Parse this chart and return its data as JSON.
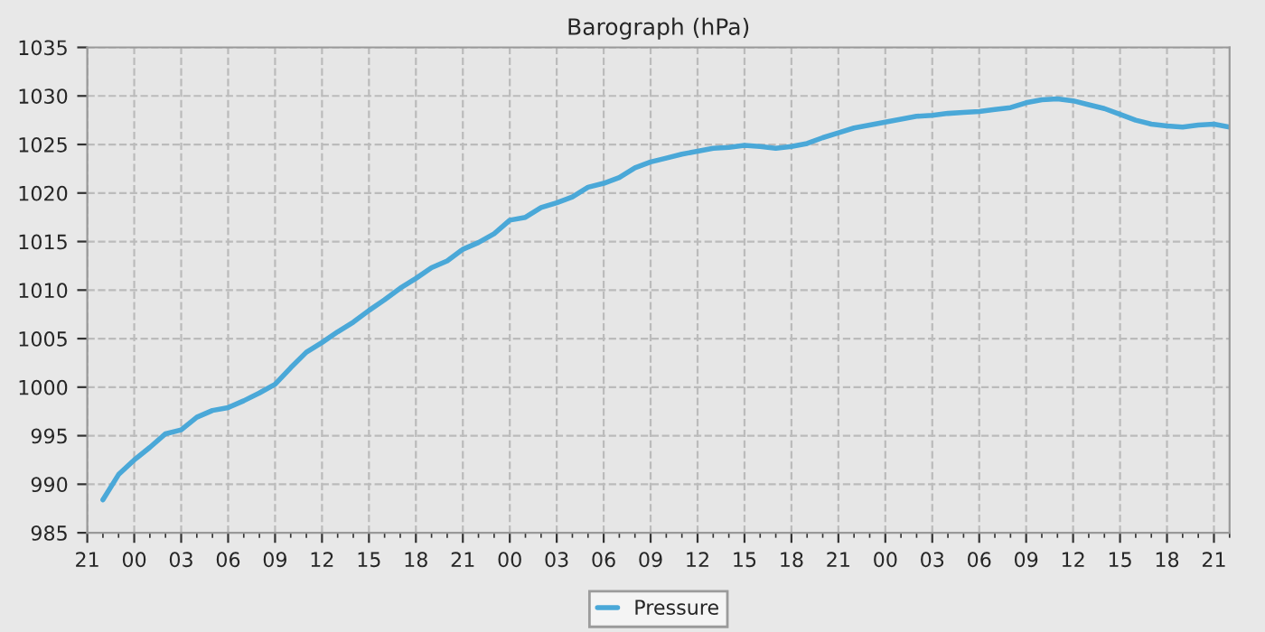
{
  "chart_data": {
    "type": "line",
    "title": "Barograph (hPa)",
    "categories": [
      "21",
      null,
      null,
      "00",
      null,
      null,
      "03",
      null,
      null,
      "06",
      null,
      null,
      "09",
      null,
      null,
      "12",
      null,
      null,
      "15",
      null,
      null,
      "18",
      null,
      null,
      "21",
      null,
      null,
      "00",
      null,
      null,
      "03",
      null,
      null,
      "06",
      null,
      null,
      "09",
      null,
      null,
      "12",
      null,
      null,
      "15",
      null,
      null,
      "18",
      null,
      null,
      "21",
      null,
      null,
      "00",
      null,
      null,
      "03",
      null,
      null,
      "06",
      null,
      null,
      "09",
      null,
      null,
      "12",
      null,
      null,
      "15",
      null,
      null,
      "18",
      null,
      null,
      "21",
      null
    ],
    "series": [
      {
        "name": "Pressure",
        "color": "#4aa8d8",
        "values": [
          null,
          988.4,
          991.0,
          992.5,
          993.8,
          995.2,
          995.6,
          996.9,
          997.6,
          997.9,
          998.6,
          999.4,
          1000.3,
          1002.0,
          1003.6,
          1004.6,
          1005.7,
          1006.7,
          1007.9,
          1009.0,
          1010.2,
          1011.2,
          1012.3,
          1013.0,
          1014.2,
          1014.9,
          1015.8,
          1017.2,
          1017.5,
          1018.5,
          1019.0,
          1019.6,
          1020.6,
          1021.0,
          1021.6,
          1022.6,
          1023.2,
          1023.6,
          1024.0,
          1024.3,
          1024.6,
          1024.7,
          1024.9,
          1024.8,
          1024.6,
          1024.8,
          1025.1,
          1025.7,
          1026.2,
          1026.7,
          1027.0,
          1027.3,
          1027.6,
          1027.9,
          1028.0,
          1028.2,
          1028.3,
          1028.4,
          1028.6,
          1028.8,
          1029.3,
          1029.6,
          1029.7,
          1029.5,
          1029.1,
          1028.7,
          1028.1,
          1027.5,
          1027.1,
          1026.9,
          1026.8,
          1027.0,
          1027.1,
          1026.8
        ]
      }
    ],
    "ylim": [
      985,
      1035
    ],
    "yticks": [
      985,
      990,
      995,
      1000,
      1005,
      1010,
      1015,
      1020,
      1025,
      1030,
      1035
    ],
    "grid": true,
    "legend": "bottom",
    "marker": "none",
    "line_style": "solid"
  }
}
